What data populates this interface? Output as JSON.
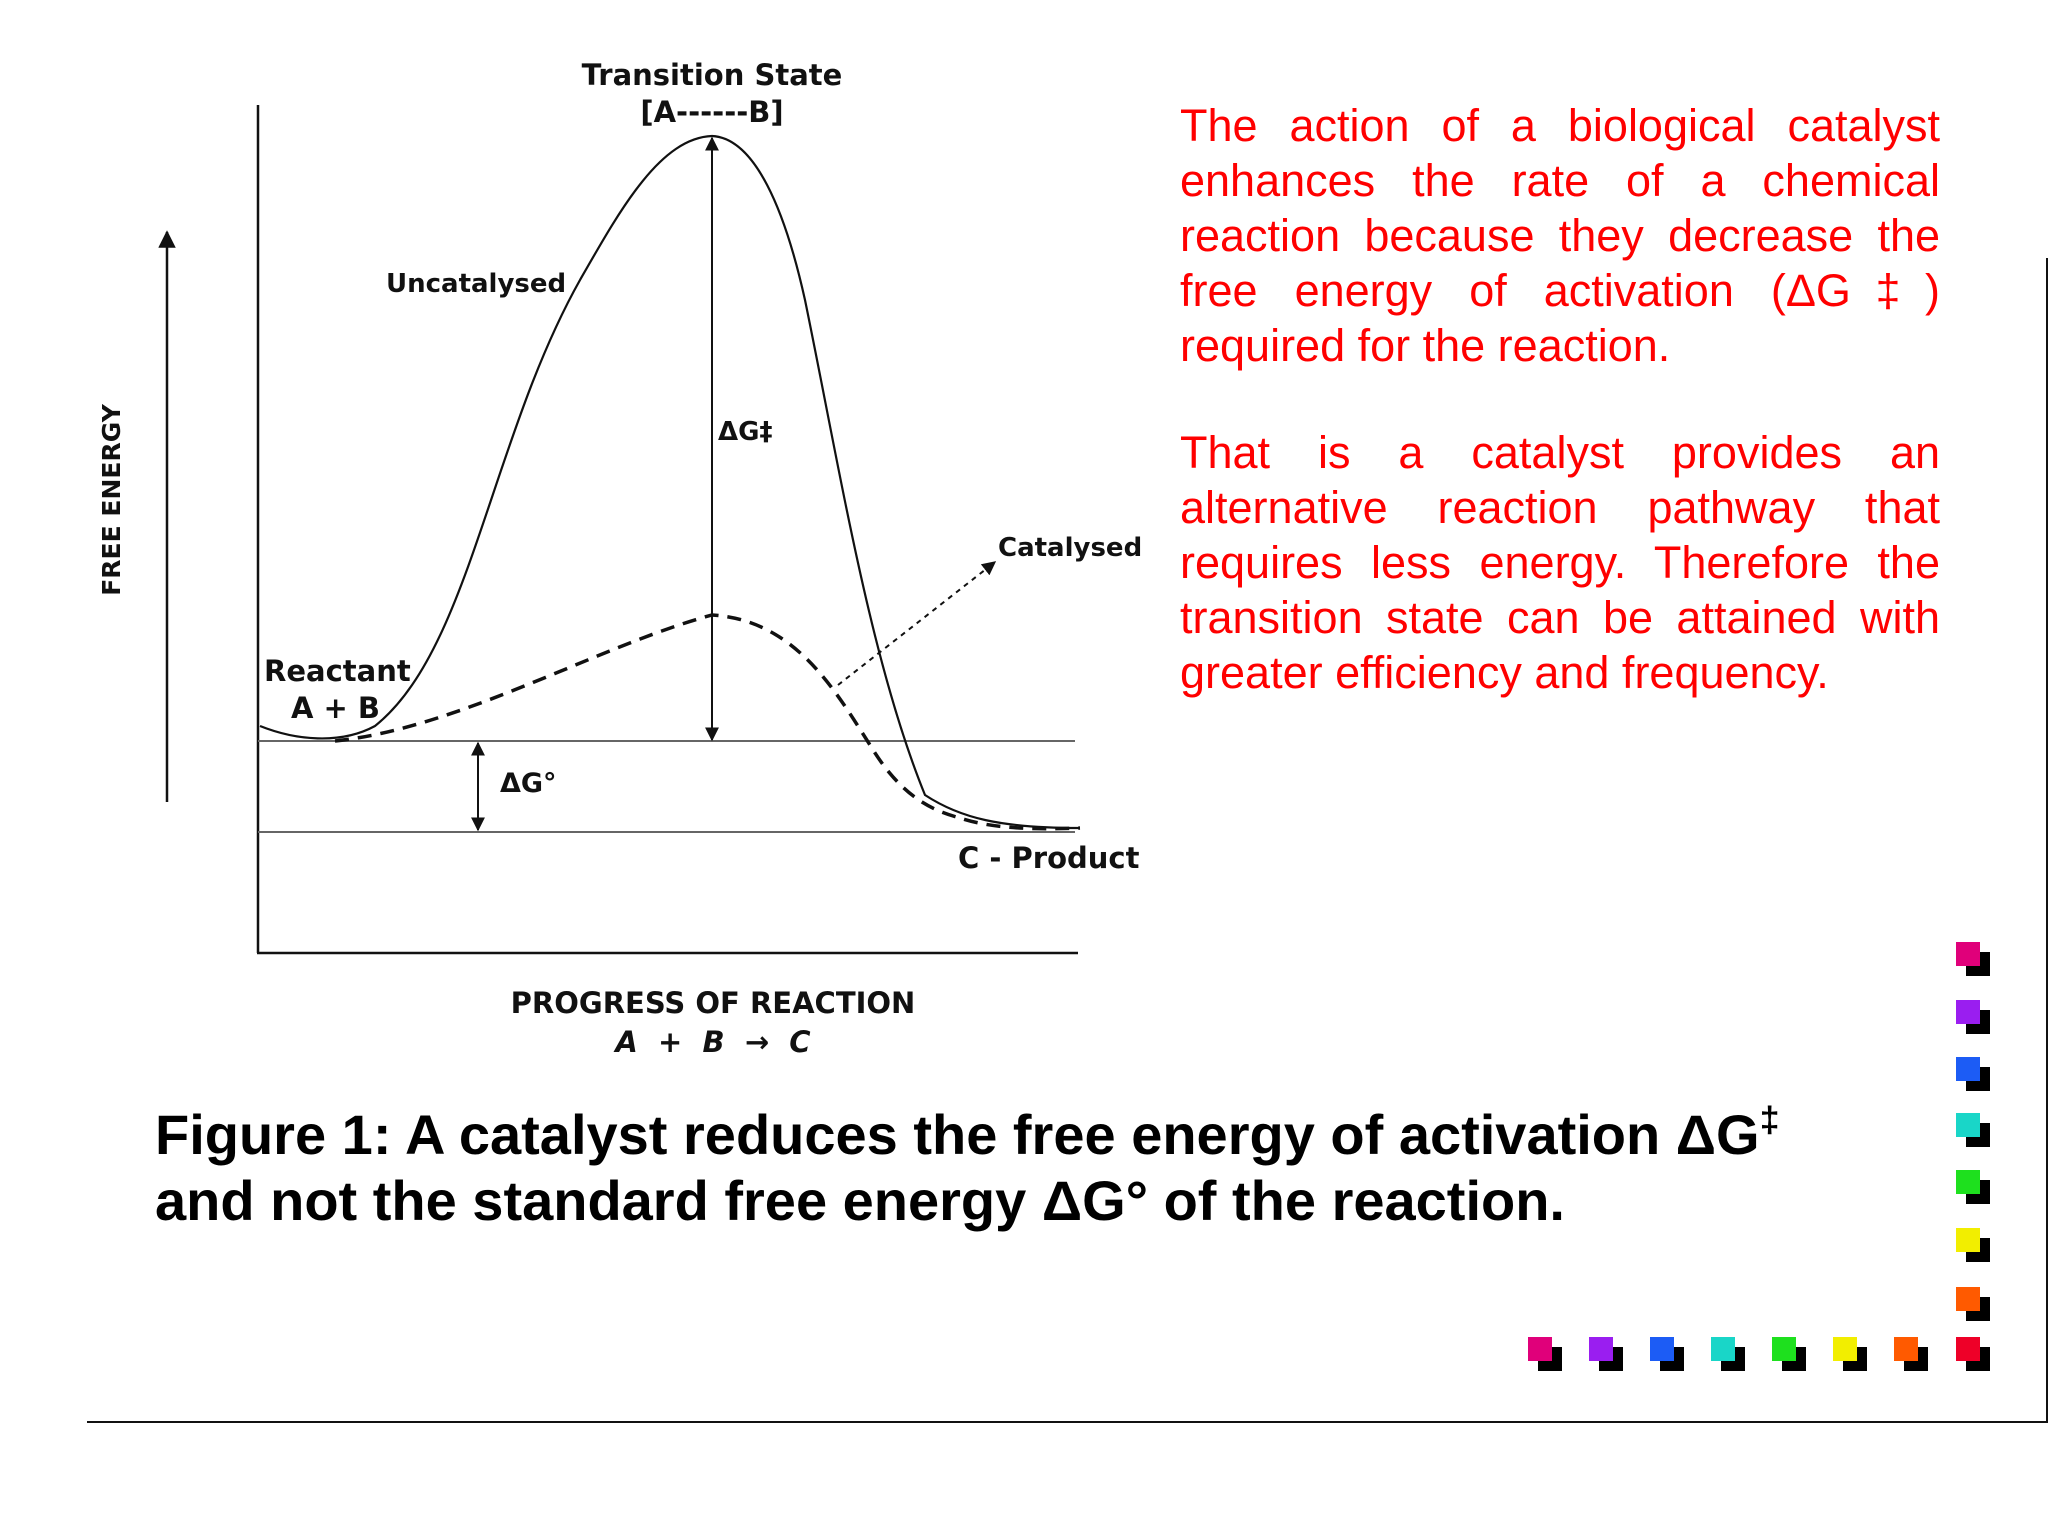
{
  "diagram": {
    "y_axis_label": "FREE ENERGY",
    "x_axis_label": "PROGRESS OF REACTION",
    "x_axis_equation": "A  +  B  →  C",
    "transition_state_label": "Transition State",
    "transition_state_formula": "[A------B]",
    "uncatalysed_label": "Uncatalysed",
    "catalysed_label": "Catalysed",
    "reactant_label": "Reactant",
    "reactant_formula": "A + B",
    "product_label": "C - Product",
    "activation_energy_label": "ΔG‡",
    "standard_energy_label": "ΔG°"
  },
  "explanation": {
    "paragraph_1": "The action of a biological catalyst enhances the rate of a chemical reaction because they decrease the free energy of activation (ΔG‡) required for the reaction.",
    "paragraph_2": "That is a catalyst provides an alternative reaction pathway that requires less energy. Therefore the transition state can be attained with greater efficiency and frequency."
  },
  "caption": {
    "line_1_text": "Figure 1: A catalyst reduces the free energy of activation ΔG",
    "line_1_sup": "‡",
    "line_2_text": "and not the standard free energy ΔG° of the reaction."
  },
  "colors": {
    "explanation_text": "#ff0000",
    "decor_squares": [
      "#e0007a",
      "#9a1ef0",
      "#1c5cf5",
      "#19d6c8",
      "#1ee01e",
      "#f2ee00",
      "#ff5a00",
      "#ee0028"
    ]
  }
}
